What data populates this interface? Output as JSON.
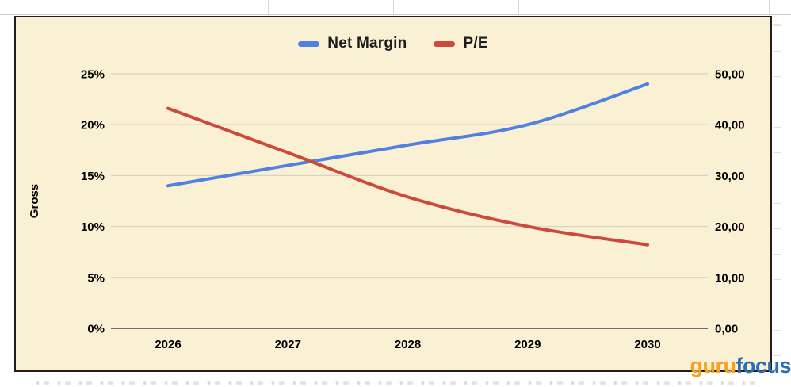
{
  "watermark": {
    "part1": "guru",
    "part2": "focus"
  },
  "chart_data": {
    "type": "line",
    "title": "",
    "categories": [
      "2026",
      "2027",
      "2028",
      "2029",
      "2030"
    ],
    "series": [
      {
        "name": "Net Margin",
        "axis": "left",
        "color": "#5180e0",
        "values": [
          14,
          16,
          18,
          20,
          24
        ]
      },
      {
        "name": "P/E",
        "axis": "right",
        "color": "#cc4a3c",
        "values": [
          43.2,
          34.5,
          25.8,
          20.0,
          16.4
        ]
      }
    ],
    "left_axis": {
      "label": "Gross",
      "min": 0,
      "max": 25,
      "tick_labels": [
        "25%",
        "20%",
        "15%",
        "10%",
        "5%",
        "0%"
      ],
      "tick_values": [
        25,
        20,
        15,
        10,
        5,
        0
      ]
    },
    "right_axis": {
      "min": 0,
      "max": 50,
      "tick_labels": [
        "50,00",
        "40,00",
        "30,00",
        "20,00",
        "10,00",
        "0,00"
      ],
      "tick_values": [
        50,
        40,
        30,
        20,
        10,
        0
      ]
    },
    "legend_position": "top",
    "grid": true,
    "colors": {
      "plot_background": "#faf0d3",
      "gridline": "#d8d3c3",
      "axis_line": "#6e6e6e",
      "border": "#1f1f1f"
    }
  }
}
